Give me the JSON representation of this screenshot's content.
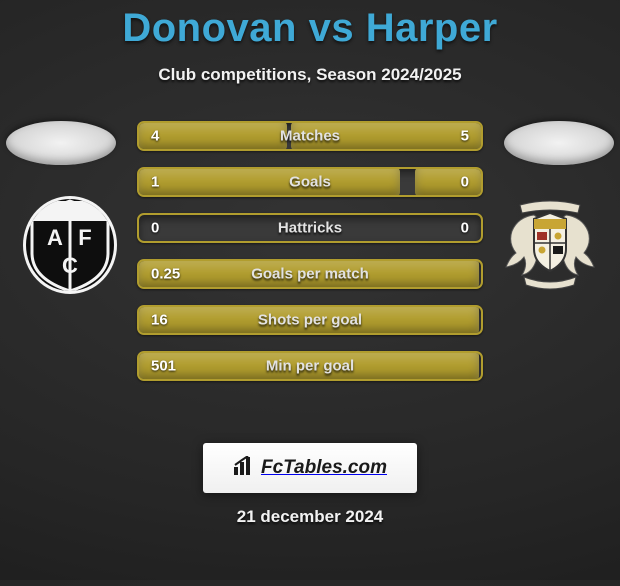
{
  "title": "Donovan vs Harper",
  "subtitle": "Club competitions, Season 2024/2025",
  "date": "21 december 2024",
  "fctables_label": "FcTables.com",
  "colors": {
    "title": "#3fa9d6",
    "text_light": "#f2f2f2",
    "bar_track": "#3a3a3a",
    "left_fill": "#b19d2e",
    "right_fill": "#b19d2e",
    "border": "#b19d2e",
    "background": "#2a2a2a"
  },
  "photo_slot": {
    "width": 110,
    "height": 44
  },
  "logos": {
    "left": {
      "name": "club-logo-left",
      "svg": "shield-black-white",
      "primary": "#0e0e0e",
      "accent": "#f4f4f4",
      "letters": "AFC"
    },
    "right": {
      "name": "club-logo-right",
      "svg": "crest-griffins",
      "primary": "#e7e1cf",
      "accent": "#1a1a1a",
      "gold": "#c8a534",
      "red": "#a03228"
    }
  },
  "bars": [
    {
      "label": "Matches",
      "left_val": "4",
      "right_val": "5",
      "left_num": 4,
      "right_num": 5,
      "left_pct": 44,
      "right_pct": 56
    },
    {
      "label": "Goals",
      "left_val": "1",
      "right_val": "0",
      "left_num": 1,
      "right_num": 0,
      "left_pct": 77,
      "right_pct": 20
    },
    {
      "label": "Hattricks",
      "left_val": "0",
      "right_val": "0",
      "left_num": 0,
      "right_num": 0,
      "left_pct": 0,
      "right_pct": 0
    },
    {
      "label": "Goals per match",
      "left_val": "0.25",
      "right_val": "",
      "left_num": 0.25,
      "right_num": 0,
      "left_pct": 100,
      "right_pct": 0
    },
    {
      "label": "Shots per goal",
      "left_val": "16",
      "right_val": "",
      "left_num": 16,
      "right_num": 0,
      "left_pct": 100,
      "right_pct": 0
    },
    {
      "label": "Min per goal",
      "left_val": "501",
      "right_val": "",
      "left_num": 501,
      "right_num": 0,
      "left_pct": 100,
      "right_pct": 0
    }
  ],
  "bar_style": {
    "height": 30,
    "gap": 16,
    "radius": 7,
    "border_width": 2,
    "label_fontsize": 15,
    "val_fontsize": 15
  }
}
